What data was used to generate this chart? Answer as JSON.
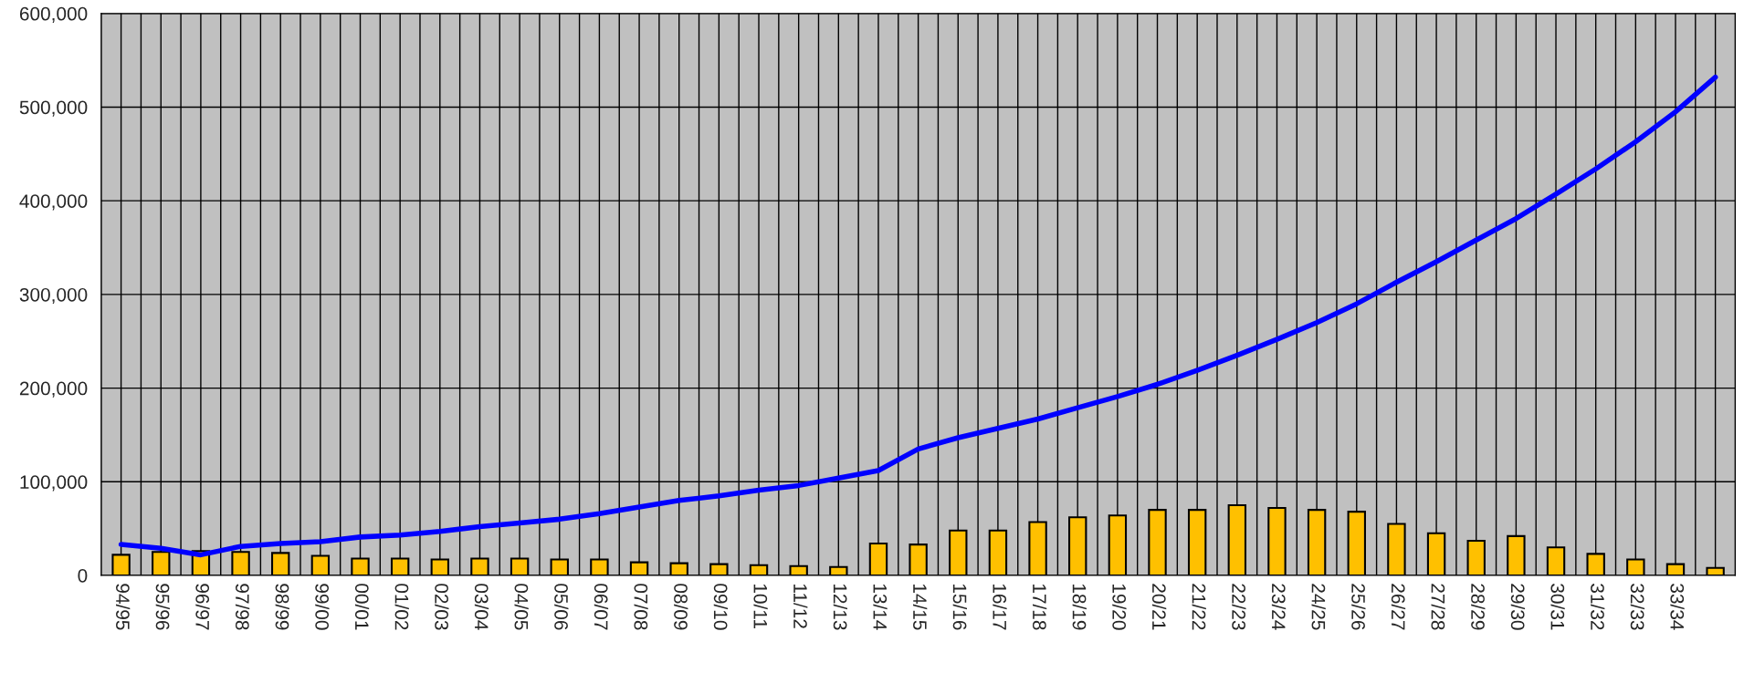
{
  "chart_data": {
    "type": "bar",
    "categories": [
      "94/95",
      "95/96",
      "96/97",
      "97/98",
      "98/99",
      "99/00",
      "00/01",
      "01/02",
      "02/03",
      "03/04",
      "04/05",
      "05/06",
      "06/07",
      "07/08",
      "08/09",
      "09/10",
      "10/11",
      "11/12",
      "12/13",
      "13/14",
      "14/15",
      "15/16",
      "16/17",
      "17/18",
      "18/19",
      "19/20",
      "20/21",
      "21/22",
      "22/23",
      "23/24",
      "24/25",
      "25/26",
      "26/27",
      "27/28",
      "28/29",
      "29/30",
      "30/31",
      "31/32",
      "32/33",
      "33/34",
      null
    ],
    "series": [
      {
        "color": "#ffc000",
        "values": [
          22000,
          25000,
          26000,
          25000,
          24000,
          21000,
          18000,
          18000,
          17000,
          18000,
          18000,
          17000,
          17000,
          14000,
          13000,
          12000,
          11000,
          10000,
          9000,
          34000,
          33000,
          48000,
          48000,
          57000,
          62000,
          64000,
          70000,
          70000,
          75000,
          72000,
          70000,
          68000,
          55000,
          45000,
          37000,
          42000,
          30000,
          23000,
          17000,
          12000,
          8000
        ]
      },
      {
        "type": "line",
        "color": "#0000ff",
        "values": [
          33000,
          29000,
          22000,
          31000,
          34000,
          36000,
          41000,
          43000,
          47000,
          52000,
          56000,
          60000,
          66000,
          73000,
          80000,
          85000,
          91000,
          96000,
          104000,
          112000,
          135000,
          147000,
          157000,
          167000,
          179000,
          191000,
          204000,
          219000,
          235000,
          252000,
          270000,
          290000,
          313000,
          335000,
          358000,
          381000,
          407000,
          434000,
          463000,
          495000,
          532000
        ]
      }
    ],
    "ylim": [
      0,
      600000
    ],
    "yticks": [
      {
        "value": 0,
        "label": "0"
      },
      {
        "value": 100000,
        "label": "100,000"
      },
      {
        "value": 200000,
        "label": "200,000"
      },
      {
        "value": 300000,
        "label": "300,000"
      },
      {
        "value": 400000,
        "label": "400,000"
      },
      {
        "value": 500000,
        "label": "500,000"
      },
      {
        "value": 600000,
        "label": "600,000"
      }
    ],
    "grid": true,
    "legend": false
  }
}
